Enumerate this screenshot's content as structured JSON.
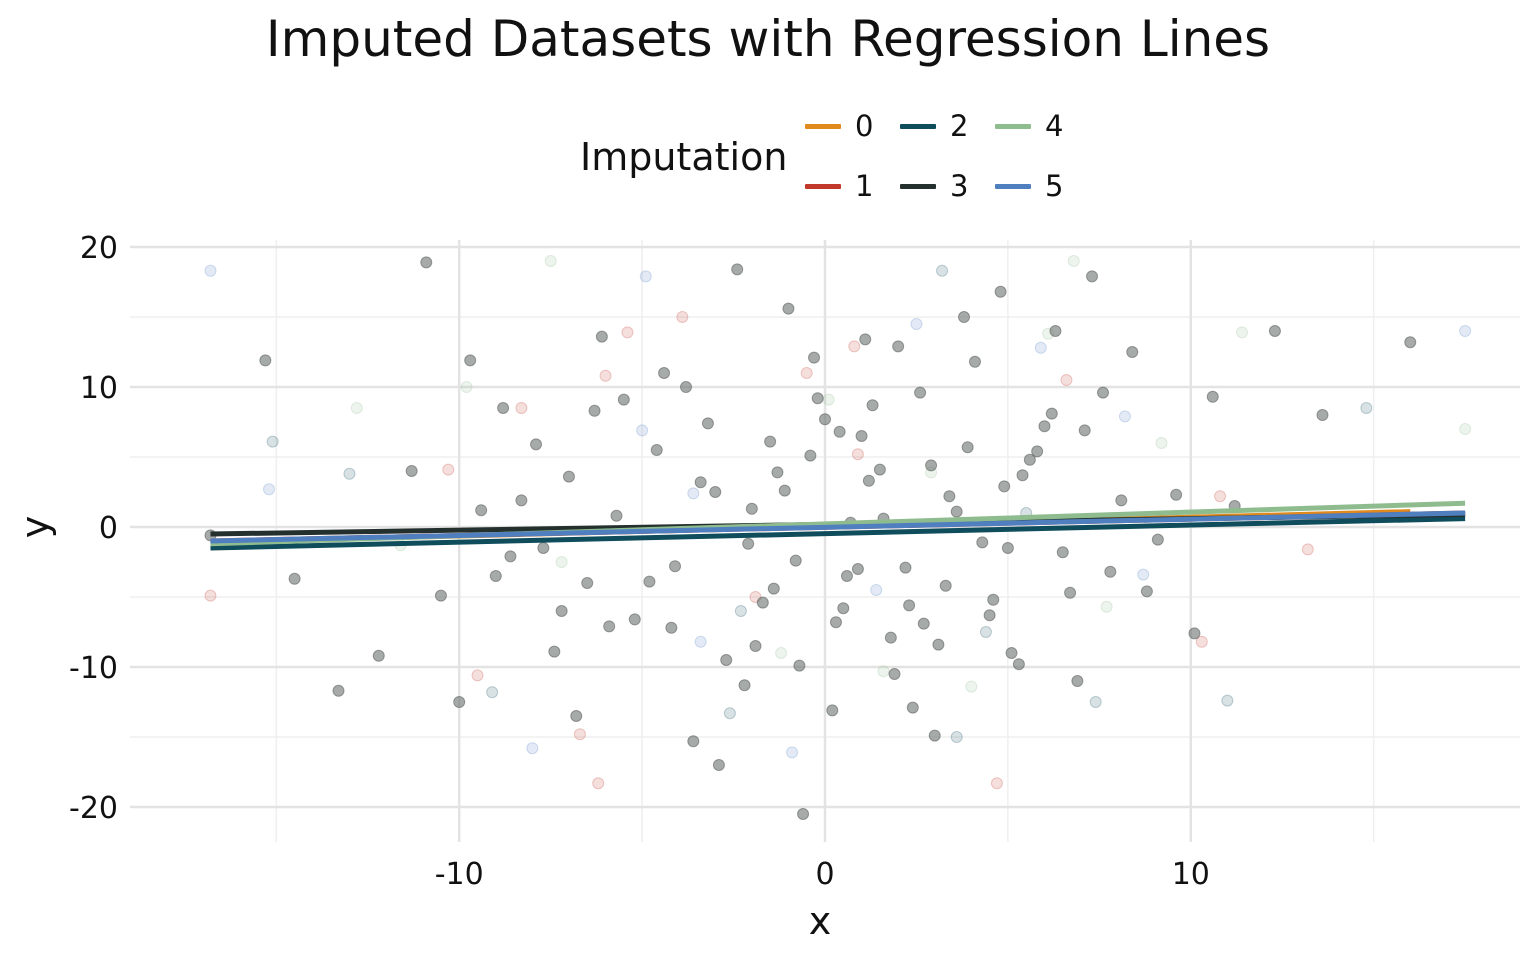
{
  "chart_data": {
    "type": "scatter",
    "title": "Imputed Datasets with Regression Lines",
    "xlabel": "x",
    "ylabel": "y",
    "xlim": [
      -19,
      19
    ],
    "ylim": [
      -22.5,
      20.5
    ],
    "x_ticks": [
      -10,
      0,
      10
    ],
    "x_tick_labels": [
      "-10",
      "0",
      "10"
    ],
    "y_ticks": [
      -20,
      -10,
      0,
      10,
      20
    ],
    "y_tick_labels": [
      "-20",
      "-10",
      "0",
      "10",
      "20"
    ],
    "grid": true,
    "legend": {
      "title": "Imputation",
      "position": "top",
      "entries": [
        "0",
        "1",
        "2",
        "3",
        "4",
        "5"
      ]
    },
    "series": [
      {
        "name": "0",
        "color": "#e08a1e",
        "line": {
          "x": [
            -16.8,
            16.0
          ],
          "y": [
            -1.1,
            1.1
          ]
        }
      },
      {
        "name": "1",
        "color": "#c0392b",
        "line": {
          "x": [
            -16.8,
            17.5
          ],
          "y": [
            -1.0,
            1.0
          ]
        }
      },
      {
        "name": "2",
        "color": "#0f4c5c",
        "line": {
          "x": [
            -16.8,
            17.5
          ],
          "y": [
            -1.5,
            0.6
          ]
        }
      },
      {
        "name": "3",
        "color": "#24302e",
        "line": {
          "x": [
            -16.8,
            17.5
          ],
          "y": [
            -0.5,
            0.9
          ]
        }
      },
      {
        "name": "4",
        "color": "#8fbc8f",
        "line": {
          "x": [
            -16.8,
            17.5
          ],
          "y": [
            -1.2,
            1.7
          ]
        }
      },
      {
        "name": "5",
        "color": "#4f7fbf",
        "line": {
          "x": [
            -16.8,
            17.5
          ],
          "y": [
            -1.0,
            1.0
          ]
        }
      }
    ],
    "observed_points": {
      "color": "#6b736f",
      "x": [
        -16.8,
        -15.3,
        -10.9,
        -14.5,
        -12.2,
        -13.3,
        -11.3,
        -10.5,
        -10.0,
        -9.7,
        -9.0,
        -8.8,
        -8.3,
        -7.7,
        -7.4,
        -7.0,
        -6.5,
        -6.1,
        -5.7,
        -5.2,
        -4.6,
        -4.1,
        -3.6,
        -3.2,
        -2.9,
        -2.4,
        -2.0,
        -1.7,
        -1.3,
        -1.0,
        -0.6,
        -0.3,
        0.0,
        0.3,
        0.7,
        1.1,
        1.5,
        1.8,
        2.2,
        2.6,
        3.0,
        3.4,
        3.8,
        4.3,
        4.8,
        5.3,
        5.8,
        6.3,
        6.7,
        7.3,
        7.8,
        8.4,
        9.1,
        9.6,
        10.1,
        10.6,
        11.2,
        12.3,
        13.6,
        16.0,
        -5.5,
        -4.2,
        -3.4,
        -2.2,
        -1.5,
        -0.8,
        0.5,
        1.3,
        2.4,
        3.6,
        4.5,
        5.6,
        6.5,
        7.1,
        -6.8,
        -7.9,
        -8.6,
        -5.9,
        -3.8,
        -2.7,
        -1.1,
        0.2,
        1.0,
        1.9,
        2.9,
        3.3,
        4.1,
        5.0,
        6.0,
        7.6,
        -9.4,
        -7.2,
        -6.3,
        -4.8,
        -1.9,
        -0.4,
        0.9,
        2.0,
        3.1,
        4.6,
        5.4,
        6.9,
        8.1,
        8.8,
        -3.0,
        -2.1,
        -0.2,
        0.6,
        1.6,
        2.7,
        3.9,
        5.1,
        6.2,
        -4.4,
        -1.4,
        1.2,
        2.3,
        4.9,
        -0.7,
        0.4
      ],
      "y": [
        -0.6,
        11.9,
        18.9,
        -3.7,
        -9.2,
        -11.7,
        4.0,
        -4.9,
        -12.5,
        11.9,
        -3.5,
        8.5,
        1.9,
        -1.5,
        -8.9,
        3.6,
        -4.0,
        13.6,
        0.8,
        -6.6,
        5.5,
        -2.8,
        -15.3,
        7.4,
        -17.0,
        18.4,
        1.3,
        -5.4,
        3.9,
        15.6,
        -20.5,
        12.1,
        7.7,
        -6.8,
        0.3,
        13.4,
        4.1,
        -7.9,
        -2.9,
        9.6,
        -14.9,
        2.2,
        15.0,
        -1.1,
        16.8,
        -9.8,
        5.4,
        14.0,
        -4.7,
        17.9,
        -3.2,
        12.5,
        -0.9,
        2.3,
        -7.6,
        9.3,
        1.5,
        14.0,
        8.0,
        13.2,
        9.1,
        -7.2,
        3.2,
        -11.3,
        6.1,
        -2.4,
        -5.8,
        8.7,
        -12.9,
        1.1,
        -6.3,
        4.8,
        -1.8,
        6.9,
        -13.5,
        5.9,
        -2.1,
        -7.1,
        10.0,
        -9.5,
        2.6,
        -13.1,
        6.5,
        -10.5,
        4.4,
        -4.2,
        11.8,
        -1.5,
        7.2,
        9.6,
        1.2,
        -6.0,
        8.3,
        -3.9,
        -8.5,
        5.1,
        -3.0,
        12.9,
        -8.4,
        -5.2,
        3.7,
        -11.0,
        1.9,
        -4.6,
        2.5,
        -1.2,
        9.2,
        -3.5,
        0.6,
        -6.9,
        5.7,
        -9.0,
        8.1,
        11.0,
        -4.4,
        3.3,
        -5.6,
        2.9,
        -9.9,
        6.8
      ]
    },
    "imputed_points": {
      "x": [
        -16.8,
        -16.8,
        -15.1,
        -15.2,
        -13.0,
        -11.6,
        -9.8,
        -9.5,
        -8.3,
        -8.0,
        -7.5,
        -6.7,
        -6.2,
        -5.4,
        -4.9,
        -3.9,
        -3.4,
        -2.6,
        -1.9,
        -0.9,
        0.1,
        0.8,
        1.6,
        2.5,
        3.2,
        4.0,
        4.7,
        5.5,
        6.1,
        6.8,
        7.4,
        8.2,
        9.2,
        10.3,
        11.4,
        13.2,
        14.8,
        17.5,
        17.5,
        11.0,
        -10.3,
        -7.2,
        -5.0,
        -2.3,
        -0.5,
        1.4,
        2.9,
        4.4,
        6.6,
        8.7,
        -12.8,
        -9.1,
        -6.0,
        -3.6,
        -1.2,
        0.9,
        3.6,
        5.9,
        7.7,
        10.8
      ],
      "y": [
        18.3,
        -4.9,
        6.1,
        2.7,
        3.8,
        -1.3,
        10.0,
        -10.6,
        8.5,
        -15.8,
        19.0,
        -14.8,
        -18.3,
        13.9,
        17.9,
        15.0,
        -8.2,
        -13.3,
        -5.0,
        -16.1,
        9.1,
        12.9,
        -10.3,
        14.5,
        18.3,
        -11.4,
        -18.3,
        1.0,
        13.8,
        19.0,
        -12.5,
        7.9,
        6.0,
        -8.2,
        13.9,
        -1.6,
        8.5,
        14.0,
        7.0,
        -12.4,
        4.1,
        -2.5,
        6.9,
        -6.0,
        11.0,
        -4.5,
        3.9,
        -7.5,
        10.5,
        -3.4,
        8.5,
        -11.8,
        10.8,
        2.4,
        -9.0,
        5.2,
        -15.0,
        12.8,
        -5.7,
        2.2
      ],
      "colors": [
        "#4f7fbf",
        "#c0392b",
        "#0f4c5c",
        "#4f7fbf",
        "#0f4c5c",
        "#8fbc8f",
        "#8fbc8f",
        "#c0392b",
        "#c0392b",
        "#4f7fbf",
        "#8fbc8f",
        "#c0392b",
        "#c0392b",
        "#c0392b",
        "#4f7fbf",
        "#c0392b",
        "#4f7fbf",
        "#0f4c5c",
        "#c0392b",
        "#4f7fbf",
        "#8fbc8f",
        "#c0392b",
        "#8fbc8f",
        "#4f7fbf",
        "#0f4c5c",
        "#8fbc8f",
        "#c0392b",
        "#0f4c5c",
        "#8fbc8f",
        "#8fbc8f",
        "#0f4c5c",
        "#4f7fbf",
        "#8fbc8f",
        "#c0392b",
        "#8fbc8f",
        "#c0392b",
        "#0f4c5c",
        "#4f7fbf",
        "#8fbc8f",
        "#0f4c5c",
        "#c0392b",
        "#8fbc8f",
        "#4f7fbf",
        "#0f4c5c",
        "#c0392b",
        "#4f7fbf",
        "#8fbc8f",
        "#0f4c5c",
        "#c0392b",
        "#4f7fbf",
        "#8fbc8f",
        "#0f4c5c",
        "#c0392b",
        "#4f7fbf",
        "#8fbc8f",
        "#c0392b",
        "#0f4c5c",
        "#4f7fbf",
        "#8fbc8f",
        "#c0392b"
      ]
    }
  }
}
